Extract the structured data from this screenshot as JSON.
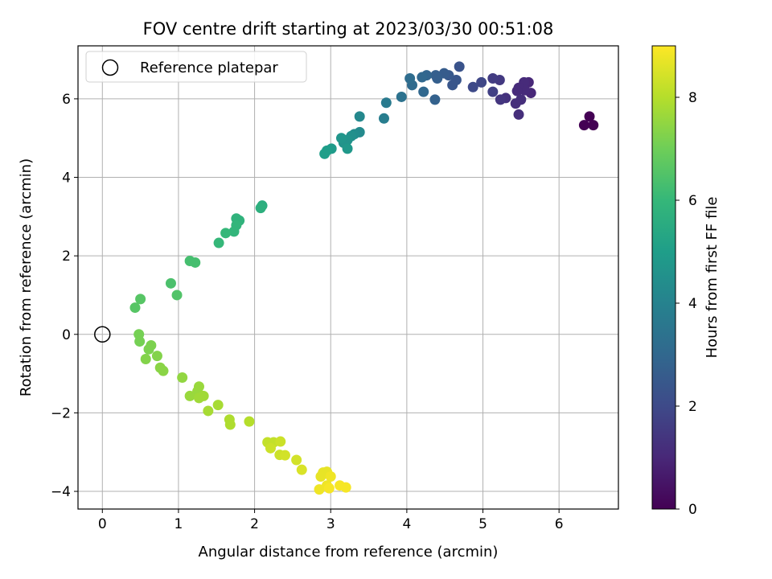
{
  "chart_data": {
    "type": "scatter",
    "title": "FOV centre drift starting at 2023/03/30 00:51:08",
    "xlabel": "Angular distance from reference (arcmin)",
    "ylabel": "Rotation from reference (arcmin)",
    "xlim": [
      -0.32,
      6.78
    ],
    "ylim": [
      -4.45,
      7.35
    ],
    "xticks": [
      0,
      1,
      2,
      3,
      4,
      5,
      6
    ],
    "yticks": [
      -4,
      -2,
      0,
      2,
      4,
      6
    ],
    "grid": true,
    "legend": {
      "location": "top-left",
      "entries": [
        "Reference platepar"
      ]
    },
    "reference_point": {
      "name": "Reference platepar",
      "x": 0.0,
      "y": 0.0
    },
    "colorbar": {
      "label": "Hours from first FF file",
      "colormap": "viridis",
      "range": [
        0,
        9
      ],
      "ticks": [
        0,
        2,
        4,
        6,
        8
      ]
    },
    "points": [
      {
        "x": 6.33,
        "y": 5.33,
        "c": 0.0
      },
      {
        "x": 6.4,
        "y": 5.55,
        "c": 0.0
      },
      {
        "x": 6.45,
        "y": 5.33,
        "c": 0.0
      },
      {
        "x": 5.63,
        "y": 6.15,
        "c": 1.0
      },
      {
        "x": 5.6,
        "y": 6.42,
        "c": 1.0
      },
      {
        "x": 5.54,
        "y": 6.42,
        "c": 1.1
      },
      {
        "x": 5.55,
        "y": 6.22,
        "c": 1.1
      },
      {
        "x": 5.47,
        "y": 6.28,
        "c": 1.1
      },
      {
        "x": 5.45,
        "y": 6.2,
        "c": 1.1
      },
      {
        "x": 5.43,
        "y": 5.88,
        "c": 1.2
      },
      {
        "x": 5.5,
        "y": 5.98,
        "c": 1.2
      },
      {
        "x": 5.47,
        "y": 5.6,
        "c": 1.2
      },
      {
        "x": 5.3,
        "y": 6.02,
        "c": 1.3
      },
      {
        "x": 5.23,
        "y": 5.98,
        "c": 1.4
      },
      {
        "x": 5.22,
        "y": 6.48,
        "c": 1.5
      },
      {
        "x": 5.13,
        "y": 6.52,
        "c": 1.6
      },
      {
        "x": 5.13,
        "y": 6.18,
        "c": 1.7
      },
      {
        "x": 4.98,
        "y": 6.42,
        "c": 1.9
      },
      {
        "x": 4.87,
        "y": 6.3,
        "c": 2.0
      },
      {
        "x": 4.69,
        "y": 6.82,
        "c": 2.3
      },
      {
        "x": 4.65,
        "y": 6.48,
        "c": 2.4
      },
      {
        "x": 4.6,
        "y": 6.35,
        "c": 2.4
      },
      {
        "x": 4.55,
        "y": 6.6,
        "c": 2.5
      },
      {
        "x": 4.49,
        "y": 6.65,
        "c": 2.6
      },
      {
        "x": 4.4,
        "y": 6.52,
        "c": 2.7
      },
      {
        "x": 4.38,
        "y": 6.6,
        "c": 2.7
      },
      {
        "x": 4.37,
        "y": 5.98,
        "c": 2.8
      },
      {
        "x": 4.26,
        "y": 6.6,
        "c": 2.9
      },
      {
        "x": 4.2,
        "y": 6.55,
        "c": 3.0
      },
      {
        "x": 4.22,
        "y": 6.18,
        "c": 3.0
      },
      {
        "x": 4.07,
        "y": 6.35,
        "c": 3.1
      },
      {
        "x": 4.04,
        "y": 6.52,
        "c": 3.2
      },
      {
        "x": 3.93,
        "y": 6.05,
        "c": 3.4
      },
      {
        "x": 3.73,
        "y": 5.9,
        "c": 3.7
      },
      {
        "x": 3.7,
        "y": 5.5,
        "c": 3.8
      },
      {
        "x": 3.38,
        "y": 5.55,
        "c": 4.2
      },
      {
        "x": 3.38,
        "y": 5.15,
        "c": 4.3
      },
      {
        "x": 3.31,
        "y": 5.1,
        "c": 4.4
      },
      {
        "x": 3.27,
        "y": 5.05,
        "c": 4.5
      },
      {
        "x": 3.22,
        "y": 4.95,
        "c": 4.6
      },
      {
        "x": 3.17,
        "y": 4.88,
        "c": 4.6
      },
      {
        "x": 3.14,
        "y": 5.0,
        "c": 4.7
      },
      {
        "x": 3.22,
        "y": 4.73,
        "c": 4.8
      },
      {
        "x": 3.01,
        "y": 4.73,
        "c": 4.9
      },
      {
        "x": 2.95,
        "y": 4.68,
        "c": 5.0
      },
      {
        "x": 2.92,
        "y": 4.6,
        "c": 5.0
      },
      {
        "x": 2.1,
        "y": 3.28,
        "c": 5.6
      },
      {
        "x": 2.08,
        "y": 3.22,
        "c": 5.7
      },
      {
        "x": 1.8,
        "y": 2.9,
        "c": 5.8
      },
      {
        "x": 1.76,
        "y": 2.95,
        "c": 5.8
      },
      {
        "x": 1.76,
        "y": 2.78,
        "c": 5.9
      },
      {
        "x": 1.73,
        "y": 2.62,
        "c": 5.9
      },
      {
        "x": 1.62,
        "y": 2.58,
        "c": 6.0
      },
      {
        "x": 1.53,
        "y": 2.33,
        "c": 6.0
      },
      {
        "x": 1.22,
        "y": 1.83,
        "c": 6.3
      },
      {
        "x": 1.15,
        "y": 1.87,
        "c": 6.3
      },
      {
        "x": 0.9,
        "y": 1.3,
        "c": 6.4
      },
      {
        "x": 0.98,
        "y": 1.0,
        "c": 6.5
      },
      {
        "x": 0.5,
        "y": 0.9,
        "c": 6.6
      },
      {
        "x": 0.43,
        "y": 0.68,
        "c": 6.6
      },
      {
        "x": 0.48,
        "y": 0.0,
        "c": 7.1
      },
      {
        "x": 0.49,
        "y": -0.18,
        "c": 7.1
      },
      {
        "x": 0.64,
        "y": -0.28,
        "c": 7.2
      },
      {
        "x": 0.61,
        "y": -0.38,
        "c": 7.2
      },
      {
        "x": 0.57,
        "y": -0.63,
        "c": 7.3
      },
      {
        "x": 0.72,
        "y": -0.55,
        "c": 7.3
      },
      {
        "x": 0.76,
        "y": -0.85,
        "c": 7.4
      },
      {
        "x": 0.8,
        "y": -0.93,
        "c": 7.4
      },
      {
        "x": 1.05,
        "y": -1.1,
        "c": 7.5
      },
      {
        "x": 1.27,
        "y": -1.33,
        "c": 7.6
      },
      {
        "x": 1.25,
        "y": -1.45,
        "c": 7.6
      },
      {
        "x": 1.15,
        "y": -1.57,
        "c": 7.6
      },
      {
        "x": 1.27,
        "y": -1.62,
        "c": 7.7
      },
      {
        "x": 1.33,
        "y": -1.57,
        "c": 7.7
      },
      {
        "x": 1.52,
        "y": -1.8,
        "c": 7.8
      },
      {
        "x": 1.39,
        "y": -1.95,
        "c": 7.8
      },
      {
        "x": 1.67,
        "y": -2.17,
        "c": 7.9
      },
      {
        "x": 1.68,
        "y": -2.3,
        "c": 7.9
      },
      {
        "x": 1.93,
        "y": -2.22,
        "c": 8.0
      },
      {
        "x": 2.17,
        "y": -2.75,
        "c": 8.2
      },
      {
        "x": 2.25,
        "y": -2.75,
        "c": 8.2
      },
      {
        "x": 2.34,
        "y": -2.73,
        "c": 8.3
      },
      {
        "x": 2.21,
        "y": -2.9,
        "c": 8.3
      },
      {
        "x": 2.33,
        "y": -3.07,
        "c": 8.3
      },
      {
        "x": 2.4,
        "y": -3.08,
        "c": 8.4
      },
      {
        "x": 2.55,
        "y": -3.2,
        "c": 8.4
      },
      {
        "x": 2.62,
        "y": -3.45,
        "c": 8.5
      },
      {
        "x": 2.9,
        "y": -3.52,
        "c": 8.7
      },
      {
        "x": 2.95,
        "y": -3.5,
        "c": 8.7
      },
      {
        "x": 2.87,
        "y": -3.62,
        "c": 8.7
      },
      {
        "x": 3.0,
        "y": -3.62,
        "c": 8.8
      },
      {
        "x": 2.95,
        "y": -3.85,
        "c": 8.8
      },
      {
        "x": 2.85,
        "y": -3.95,
        "c": 8.8
      },
      {
        "x": 3.12,
        "y": -3.85,
        "c": 8.9
      },
      {
        "x": 3.2,
        "y": -3.9,
        "c": 8.9
      },
      {
        "x": 2.98,
        "y": -3.92,
        "c": 8.9
      }
    ]
  }
}
